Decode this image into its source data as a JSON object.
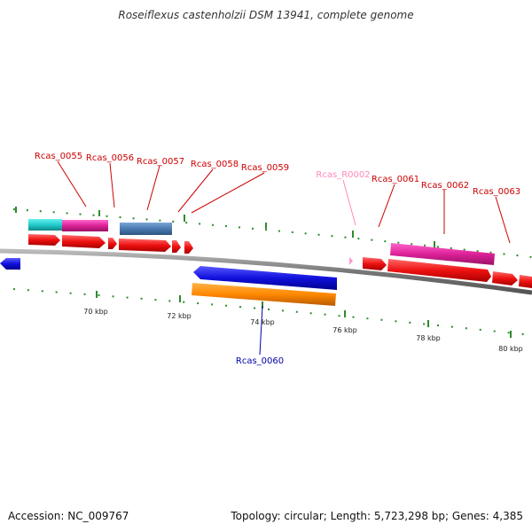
{
  "title": "Roseiflexus castenholzii DSM 13941, complete genome",
  "footer": {
    "accession": "Accession: NC_009767",
    "info": "Topology: circular; Length: 5,723,298 bp; Genes: 4,385"
  },
  "colors": {
    "forward_gene": "#ee1111",
    "reverse_gene": "#1111dd",
    "rna": "#ff99cc",
    "gene_label": "#cc0000",
    "reverse_label": "#0000aa",
    "rna_label": "#ff88bb",
    "tick": "#2e8b2e",
    "backbone": "#888888",
    "cyan_feature": "#22cccc",
    "magenta_feature": "#dd2299",
    "steel_feature": "#4a7ab0",
    "orange_feature": "#ff8800"
  },
  "axis": {
    "unit": "kbp",
    "ticks": [
      "70 kbp",
      "72 kbp",
      "74 kbp",
      "76 kbp",
      "78 kbp",
      "80 kbp"
    ]
  },
  "genes": [
    {
      "label": "Rcas_0055",
      "strand": "+"
    },
    {
      "label": "Rcas_0056",
      "strand": "+"
    },
    {
      "label": "Rcas_0057",
      "strand": "+"
    },
    {
      "label": "Rcas_0058",
      "strand": "+"
    },
    {
      "label": "Rcas_0059",
      "strand": "+"
    },
    {
      "label": "Rcas_0060",
      "strand": "-"
    },
    {
      "label": "Rcas_R0002",
      "strand": "+",
      "type": "rna"
    },
    {
      "label": "Rcas_0061",
      "strand": "+"
    },
    {
      "label": "Rcas_0062",
      "strand": "+"
    },
    {
      "label": "Rcas_0063",
      "strand": "+"
    }
  ]
}
